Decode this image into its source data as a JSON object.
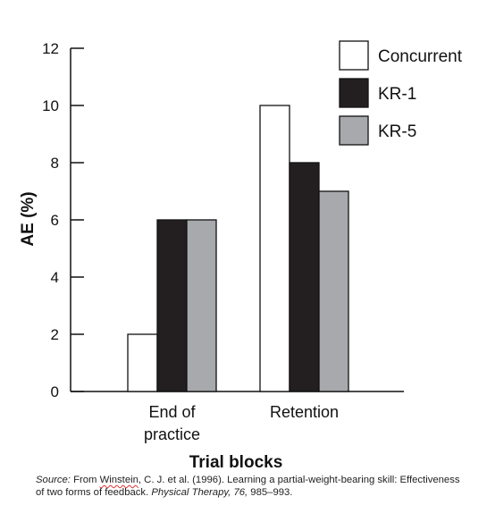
{
  "chart_data": {
    "type": "bar",
    "ylabel": "AE (%)",
    "xlabel": "Trial blocks",
    "categories": [
      [
        "End of",
        "practice"
      ],
      [
        "Retention"
      ]
    ],
    "ylim": [
      0,
      12
    ],
    "yticks": [
      0,
      2,
      4,
      6,
      8,
      10,
      12
    ],
    "grid": false,
    "legend_position": "top-right",
    "series": [
      {
        "name": "Concurrent",
        "values": [
          2,
          10
        ],
        "color": "#ffffff"
      },
      {
        "name": "KR-1",
        "values": [
          6,
          8
        ],
        "color": "#231f20"
      },
      {
        "name": "KR-5",
        "values": [
          6,
          7
        ],
        "color": "#a7a9ac"
      }
    ]
  },
  "source": {
    "label": "Source:",
    "prefix": " From ",
    "author": "Winstein",
    "citation": ", C. J. et al. (1996). Learning a partial-weight-bearing skill: Effectiveness of two forms of feedback. ",
    "journal": "Physical Therapy,",
    "space": " ",
    "volume": "76,",
    "pages": " 985–993."
  }
}
